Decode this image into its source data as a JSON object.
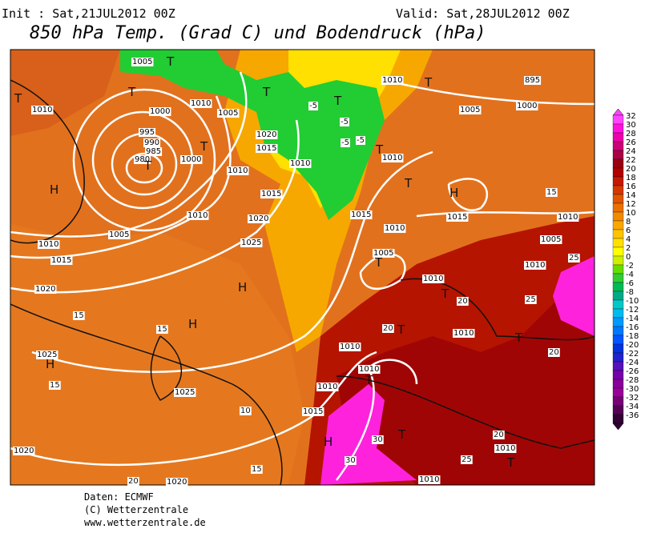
{
  "header": {
    "init": "Init : Sat,21JUL2012 00Z",
    "valid": "Valid: Sat,28JUL2012 00Z",
    "title": "850 hPa Temp. (Grad C) und Bodendruck (hPa)"
  },
  "colorbar": {
    "values": [
      32,
      30,
      28,
      26,
      24,
      22,
      20,
      18,
      16,
      14,
      12,
      10,
      8,
      6,
      4,
      2,
      0,
      -2,
      -4,
      -6,
      -8,
      -10,
      -12,
      -14,
      -16,
      -18,
      -20,
      -22,
      -24,
      -26,
      -28,
      -30,
      -32,
      -34,
      -36
    ],
    "colors": [
      "#ff44ff",
      "#ff11dd",
      "#ee00aa",
      "#cc0077",
      "#aa0044",
      "#990011",
      "#b30000",
      "#c41a00",
      "#d43800",
      "#e05500",
      "#ea7000",
      "#f28a00",
      "#f8a800",
      "#ffc400",
      "#ffe000",
      "#ffff00",
      "#ccf000",
      "#66dd00",
      "#33cc33",
      "#00bb55",
      "#00aa88",
      "#00c8c8",
      "#00bbee",
      "#0099ff",
      "#0077ff",
      "#0055ff",
      "#0033dd",
      "#2222cc",
      "#5511bb",
      "#7700aa",
      "#880099",
      "#990099",
      "#770077",
      "#550055",
      "#330033"
    ]
  },
  "map_labels": [
    "1005",
    "T",
    "T",
    "1010",
    "T",
    "1000",
    "995",
    "990",
    "985",
    "980",
    "T",
    "1005",
    "T",
    "1000",
    "1010",
    "T",
    "1020",
    "1015",
    "1010",
    "1010",
    "H",
    "1005",
    "1010",
    "1015",
    "1020",
    "1010",
    "1015",
    "1020",
    "1025",
    "H",
    "H",
    "15",
    "15",
    "1025",
    "H",
    "15",
    "1025",
    "10",
    "1015",
    "1010",
    "1010",
    "1020",
    "20",
    "1020",
    "15",
    "H",
    "30",
    "30",
    "T",
    "1010",
    "25",
    "1010",
    "T",
    "20",
    "1010",
    "T",
    "20",
    "T",
    "1010",
    "T",
    "20",
    "1010",
    "T",
    "1005",
    "1010",
    "1015",
    "1015",
    "H",
    "T",
    "1010",
    "T",
    "1005",
    "1000",
    "895",
    "T",
    "1010",
    "-5",
    "-5",
    "-5",
    "-5",
    "T",
    "1005",
    "1010",
    "1010",
    "25",
    "T",
    "20",
    "25",
    "15"
  ],
  "footer": [
    "Daten: ECMWF",
    "(C) Wetterzentrale",
    "www.wetterzentrale.de"
  ]
}
